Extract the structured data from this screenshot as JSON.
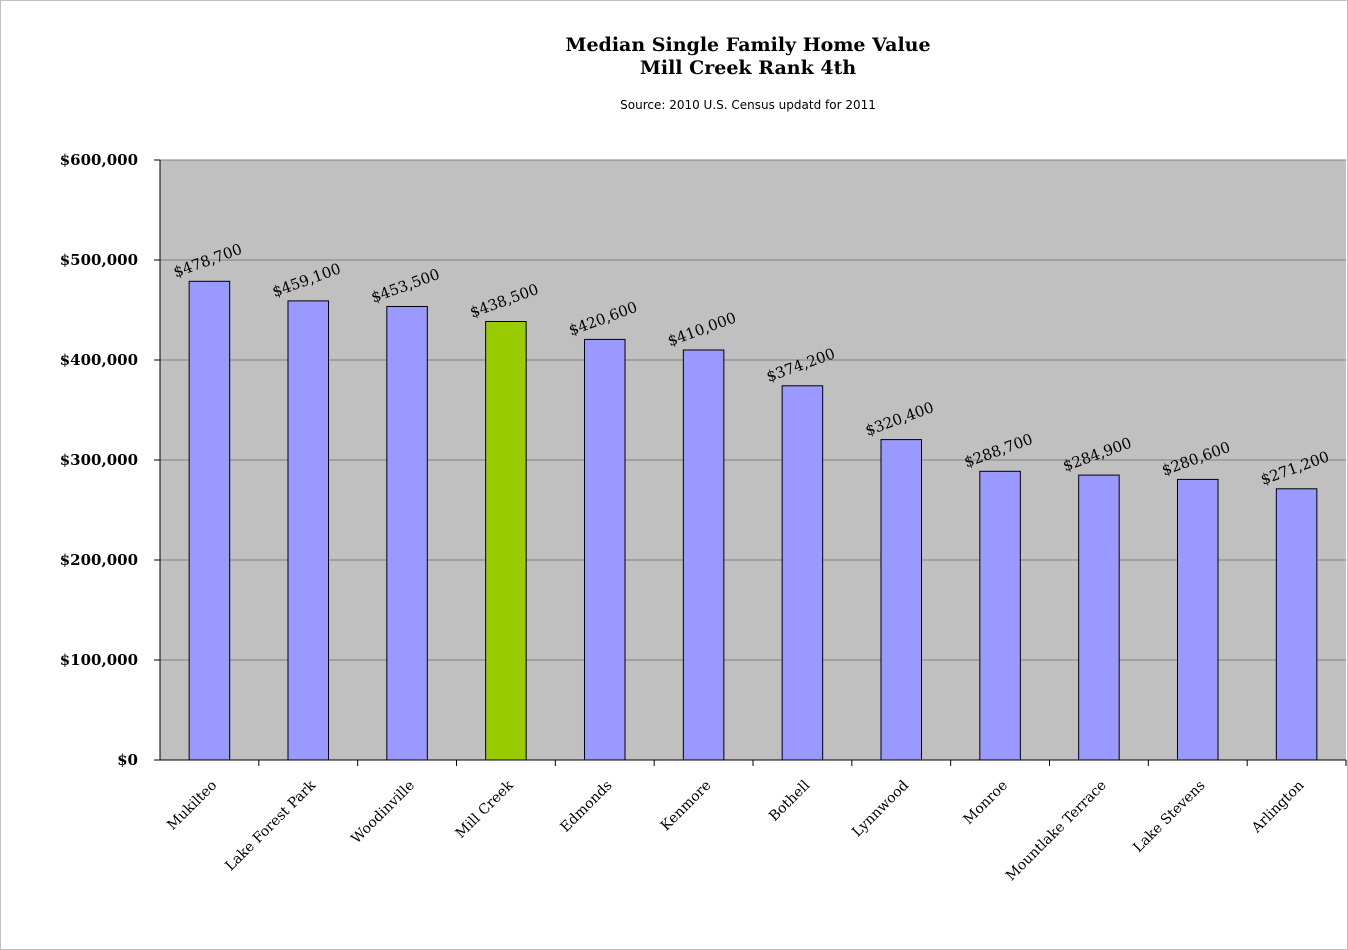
{
  "chart_data": {
    "type": "bar",
    "title": "Median Single Family Home Value",
    "title_line2": "Mill Creek Rank 4th",
    "subtitle": "Source: 2010 U.S. Census updatd for 2011",
    "xlabel": "",
    "ylabel": "",
    "ylim": [
      0,
      600000
    ],
    "yticks": [
      "$0",
      "$100,000",
      "$200,000",
      "$300,000",
      "$400,000",
      "$500,000",
      "$600,000"
    ],
    "grid": true,
    "categories": [
      "Mukilteo",
      "Lake Forest Park",
      "Woodinville",
      "Mill Creek",
      "Edmonds",
      "Kenmore",
      "Bothell",
      "Lynnwood",
      "Monroe",
      "Mountlake Terrace",
      "Lake Stevens",
      "Arlington"
    ],
    "values": [
      478700,
      459100,
      453500,
      438500,
      420600,
      410000,
      374200,
      320400,
      288700,
      284900,
      280600,
      271200
    ],
    "data_labels": [
      "$478,700",
      "$459,100",
      "$453,500",
      "$438,500",
      "$420,600",
      "$410,000",
      "$374,200",
      "$320,400",
      "$288,700",
      "$284,900",
      "$280,600",
      "$271,200"
    ],
    "highlight_category": "Mill Creek",
    "colors": {
      "bar": "#9999ff",
      "highlight": "#99cc00",
      "plot_background": "#c0c0c0",
      "gridline": "#808080"
    }
  }
}
